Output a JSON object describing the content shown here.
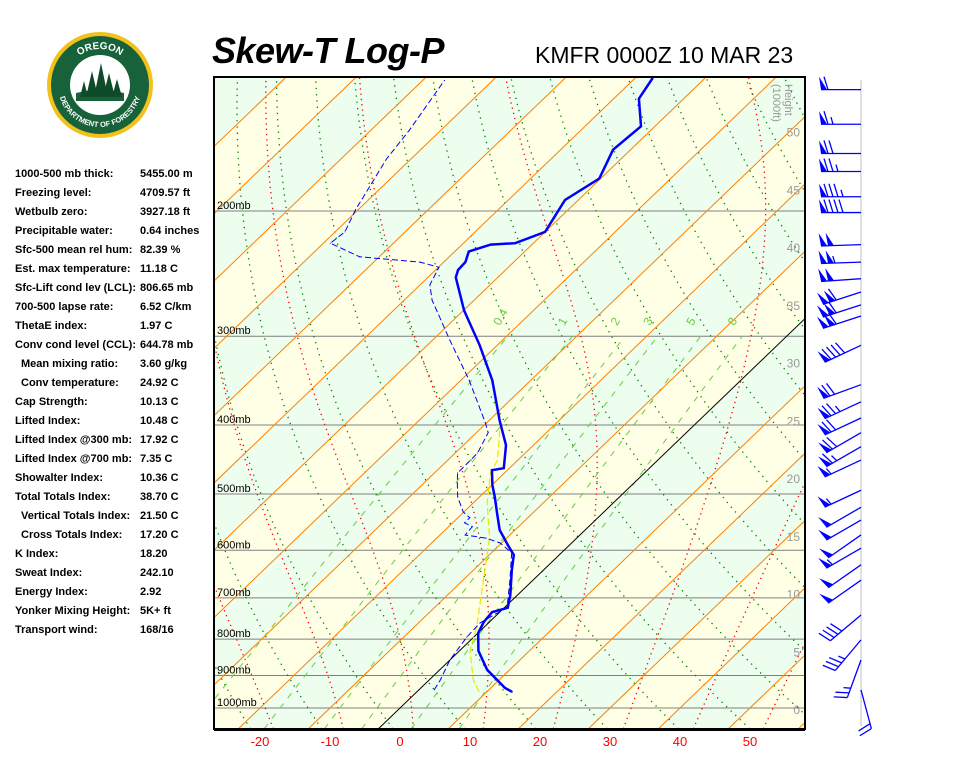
{
  "header": {
    "title": "Skew-T Log-P",
    "station_time": "KMFR 0000Z 10 MAR 23"
  },
  "logo": {
    "top_text": "OREGON",
    "bottom_text": "DEPARTMENT OF FORESTRY"
  },
  "indices": [
    {
      "label": "1000-500 mb thick:",
      "value": "5455.00 m",
      "indent": false
    },
    {
      "label": "Freezing level:",
      "value": "4709.57 ft",
      "indent": false
    },
    {
      "label": "Wetbulb zero:",
      "value": "3927.18 ft",
      "indent": false
    },
    {
      "label": "Precipitable water:",
      "value": "0.64 inches",
      "indent": false
    },
    {
      "label": "Sfc-500 mean rel hum:",
      "value": "82.39 %",
      "indent": false
    },
    {
      "label": "Est. max temperature:",
      "value": "11.18 C",
      "indent": false
    },
    {
      "label": "Sfc-Lift cond lev (LCL):",
      "value": "806.65 mb",
      "indent": false
    },
    {
      "label": "700-500 lapse rate:",
      "value": "6.52 C/km",
      "indent": false
    },
    {
      "label": "ThetaE index:",
      "value": "1.97 C",
      "indent": false
    },
    {
      "label": "Conv cond level (CCL):",
      "value": "644.78 mb",
      "indent": false
    },
    {
      "label": "Mean mixing ratio:",
      "value": "3.60 g/kg",
      "indent": true
    },
    {
      "label": "Conv temperature:",
      "value": "24.92 C",
      "indent": true
    },
    {
      "label": "Cap Strength:",
      "value": "10.13 C",
      "indent": false
    },
    {
      "label": "Lifted Index:",
      "value": "10.48 C",
      "indent": false
    },
    {
      "label": "Lifted Index @300 mb:",
      "value": "17.92 C",
      "indent": false
    },
    {
      "label": "Lifted Index @700 mb:",
      "value": "7.35 C",
      "indent": false
    },
    {
      "label": "Showalter Index:",
      "value": "10.36 C",
      "indent": false
    },
    {
      "label": "Total Totals Index:",
      "value": "38.70 C",
      "indent": false
    },
    {
      "label": "Vertical Totals Index:",
      "value": "21.50 C",
      "indent": true
    },
    {
      "label": "Cross Totals Index:",
      "value": "17.20 C",
      "indent": true
    },
    {
      "label": "K Index:",
      "value": "18.20",
      "indent": false
    },
    {
      "label": "Sweat Index:",
      "value": "242.10",
      "indent": false
    },
    {
      "label": "Energy Index:",
      "value": "2.92",
      "indent": false
    },
    {
      "label": "Yonker Mixing Height:",
      "value": "5K+ ft",
      "indent": false
    },
    {
      "label": "Transport wind:",
      "value": "168/16",
      "indent": false
    }
  ],
  "chart_data": {
    "type": "skew-t log-p",
    "title": "Skew-T Log-P",
    "subtitle": "KMFR 0000Z 10 MAR 23",
    "x_unit": "C",
    "x_ticks": [
      -20,
      -10,
      0,
      10,
      20,
      30,
      40,
      50
    ],
    "x_range_at_1000mb": [
      -26.6,
      57.9
    ],
    "pressure_range_mb": [
      1070,
      130
    ],
    "y_scale": "log",
    "pressure_levels": [
      {
        "p": 200,
        "label": "200mb"
      },
      {
        "p": 300,
        "label": "300mb"
      },
      {
        "p": 400,
        "label": "400mb"
      },
      {
        "p": 500,
        "label": "500mb"
      },
      {
        "p": 600,
        "label": "600mb"
      },
      {
        "p": 700,
        "label": "700mb"
      },
      {
        "p": 800,
        "label": "800mb"
      },
      {
        "p": 900,
        "label": "900mb"
      },
      {
        "p": 1000,
        "label": "1000mb"
      }
    ],
    "height_axis": {
      "label_line1": "Height",
      "label_line2": "(1000ft)",
      "ticks": [
        0,
        5,
        10,
        15,
        20,
        25,
        30,
        35,
        40,
        45,
        50
      ]
    },
    "isotherm_interval_c": 10,
    "highlight_isotherm_c": 0,
    "mixing_ratio_lines_gkg": [
      0.4,
      1,
      2,
      3,
      5,
      8
    ],
    "mixing_ratio_labels": [
      "0.4",
      "1",
      "2",
      "3",
      "5",
      "8"
    ],
    "colors": {
      "temperature": "#0000ff",
      "dewpoint": "#0000ff",
      "wetbulb": "#e8e800",
      "isotherm": "#ff8000",
      "zero_isotherm": "#000000",
      "dry_adiabat": "#008000",
      "moist_adiabat": "#ff0000",
      "mixing_ratio": "#66cc44",
      "band_a": "#ffffe6",
      "band_b": "#edfdee",
      "x_tick_labels": "#ff0000",
      "wind_barbs": "#0000ff",
      "pressure_lines": "#808080"
    },
    "temperature": [
      [
        949,
        13.6
      ],
      [
        937,
        12.0
      ],
      [
        913,
        9.7
      ],
      [
        884,
        6.8
      ],
      [
        831,
        2.7
      ],
      [
        784,
        0.0
      ],
      [
        757,
        -0.8
      ],
      [
        733,
        -1.1
      ],
      [
        723,
        0.5
      ],
      [
        694,
        -1.0
      ],
      [
        640,
        -4.5
      ],
      [
        609,
        -6.5
      ],
      [
        590,
        -8.8
      ],
      [
        562,
        -12.2
      ],
      [
        535,
        -14.8
      ],
      [
        505,
        -17.8
      ],
      [
        486,
        -19.9
      ],
      [
        463,
        -22.2
      ],
      [
        460,
        -20.8
      ],
      [
        427,
        -23.9
      ],
      [
        394,
        -28.5
      ],
      [
        346,
        -35.5
      ],
      [
        309,
        -42.5
      ],
      [
        276,
        -49.9
      ],
      [
        248,
        -56.0
      ],
      [
        242,
        -56.8
      ],
      [
        236,
        -56.9
      ],
      [
        228,
        -58.0
      ],
      [
        223,
        -55.9
      ],
      [
        222,
        -52.6
      ],
      [
        214,
        -50.0
      ],
      [
        193,
        -51.9
      ],
      [
        180,
        -50.2
      ],
      [
        164,
        -52.5
      ],
      [
        152,
        -52.0
      ],
      [
        139,
        -56.4
      ],
      [
        130,
        -57.5
      ]
    ],
    "dewpoint": [
      [
        943,
        2.2
      ],
      [
        913,
        1.6
      ],
      [
        856,
        0.0
      ],
      [
        795,
        -1.0
      ],
      [
        759,
        -1.2
      ],
      [
        735,
        -0.2
      ],
      [
        723,
        0.4
      ],
      [
        661,
        -3.3
      ],
      [
        605,
        -7.1
      ],
      [
        586,
        -10.2
      ],
      [
        577,
        -12.9
      ],
      [
        571,
        -16.4
      ],
      [
        556,
        -16.6
      ],
      [
        549,
        -18.3
      ],
      [
        540,
        -18.3
      ],
      [
        530,
        -20.1
      ],
      [
        505,
        -23.1
      ],
      [
        482,
        -25.3
      ],
      [
        467,
        -26.7
      ],
      [
        460,
        -26.7
      ],
      [
        438,
        -26.8
      ],
      [
        410,
        -28.3
      ],
      [
        397,
        -30.2
      ],
      [
        346,
        -38.8
      ],
      [
        304,
        -47.5
      ],
      [
        267,
        -56.0
      ],
      [
        254,
        -58.6
      ],
      [
        240,
        -59.9
      ],
      [
        236,
        -63.4
      ],
      [
        232,
        -72.8
      ],
      [
        222,
        -79.0
      ],
      [
        214,
        -78.6
      ],
      [
        199,
        -80.4
      ],
      [
        169,
        -83.5
      ],
      [
        154,
        -84.5
      ],
      [
        131,
        -86.9
      ]
    ],
    "wetbulb": [
      [
        949,
        8.9
      ],
      [
        913,
        6.3
      ],
      [
        829,
        1.4
      ],
      [
        769,
        -1.1
      ],
      [
        575,
        -12.6
      ],
      [
        515,
        -18.0
      ],
      [
        467,
        -22.0
      ],
      [
        448,
        -22.9
      ],
      [
        406,
        -27.1
      ]
    ],
    "winds": [
      {
        "p": 135,
        "dir": 270,
        "kt": 60
      },
      {
        "p": 151,
        "dir": 270,
        "kt": 65
      },
      {
        "p": 166,
        "dir": 270,
        "kt": 70
      },
      {
        "p": 176,
        "dir": 270,
        "kt": 75
      },
      {
        "p": 191,
        "dir": 270,
        "kt": 85
      },
      {
        "p": 201,
        "dir": 270,
        "kt": 90
      },
      {
        "p": 223,
        "dir": 268,
        "kt": 100
      },
      {
        "p": 236,
        "dir": 268,
        "kt": 105
      },
      {
        "p": 249,
        "dir": 266,
        "kt": 100
      },
      {
        "p": 260,
        "dir": 252,
        "kt": 110
      },
      {
        "p": 271,
        "dir": 252,
        "kt": 110
      },
      {
        "p": 281,
        "dir": 252,
        "kt": 110
      },
      {
        "p": 309,
        "dir": 245,
        "kt": 90
      },
      {
        "p": 351,
        "dir": 250,
        "kt": 70
      },
      {
        "p": 371,
        "dir": 245,
        "kt": 75
      },
      {
        "p": 391,
        "dir": 245,
        "kt": 70
      },
      {
        "p": 410,
        "dir": 240,
        "kt": 70
      },
      {
        "p": 429,
        "dir": 240,
        "kt": 65
      },
      {
        "p": 448,
        "dir": 245,
        "kt": 55
      },
      {
        "p": 494,
        "dir": 245,
        "kt": 55
      },
      {
        "p": 522,
        "dir": 240,
        "kt": 50
      },
      {
        "p": 544,
        "dir": 240,
        "kt": 50
      },
      {
        "p": 571,
        "dir": 235,
        "kt": 50
      },
      {
        "p": 596,
        "dir": 240,
        "kt": 55
      },
      {
        "p": 629,
        "dir": 235,
        "kt": 50
      },
      {
        "p": 661,
        "dir": 235,
        "kt": 50
      },
      {
        "p": 740,
        "dir": 230,
        "kt": 40
      },
      {
        "p": 802,
        "dir": 220,
        "kt": 35
      },
      {
        "p": 856,
        "dir": 200,
        "kt": 25
      },
      {
        "p": 943,
        "dir": 165,
        "kt": 20
      }
    ]
  }
}
